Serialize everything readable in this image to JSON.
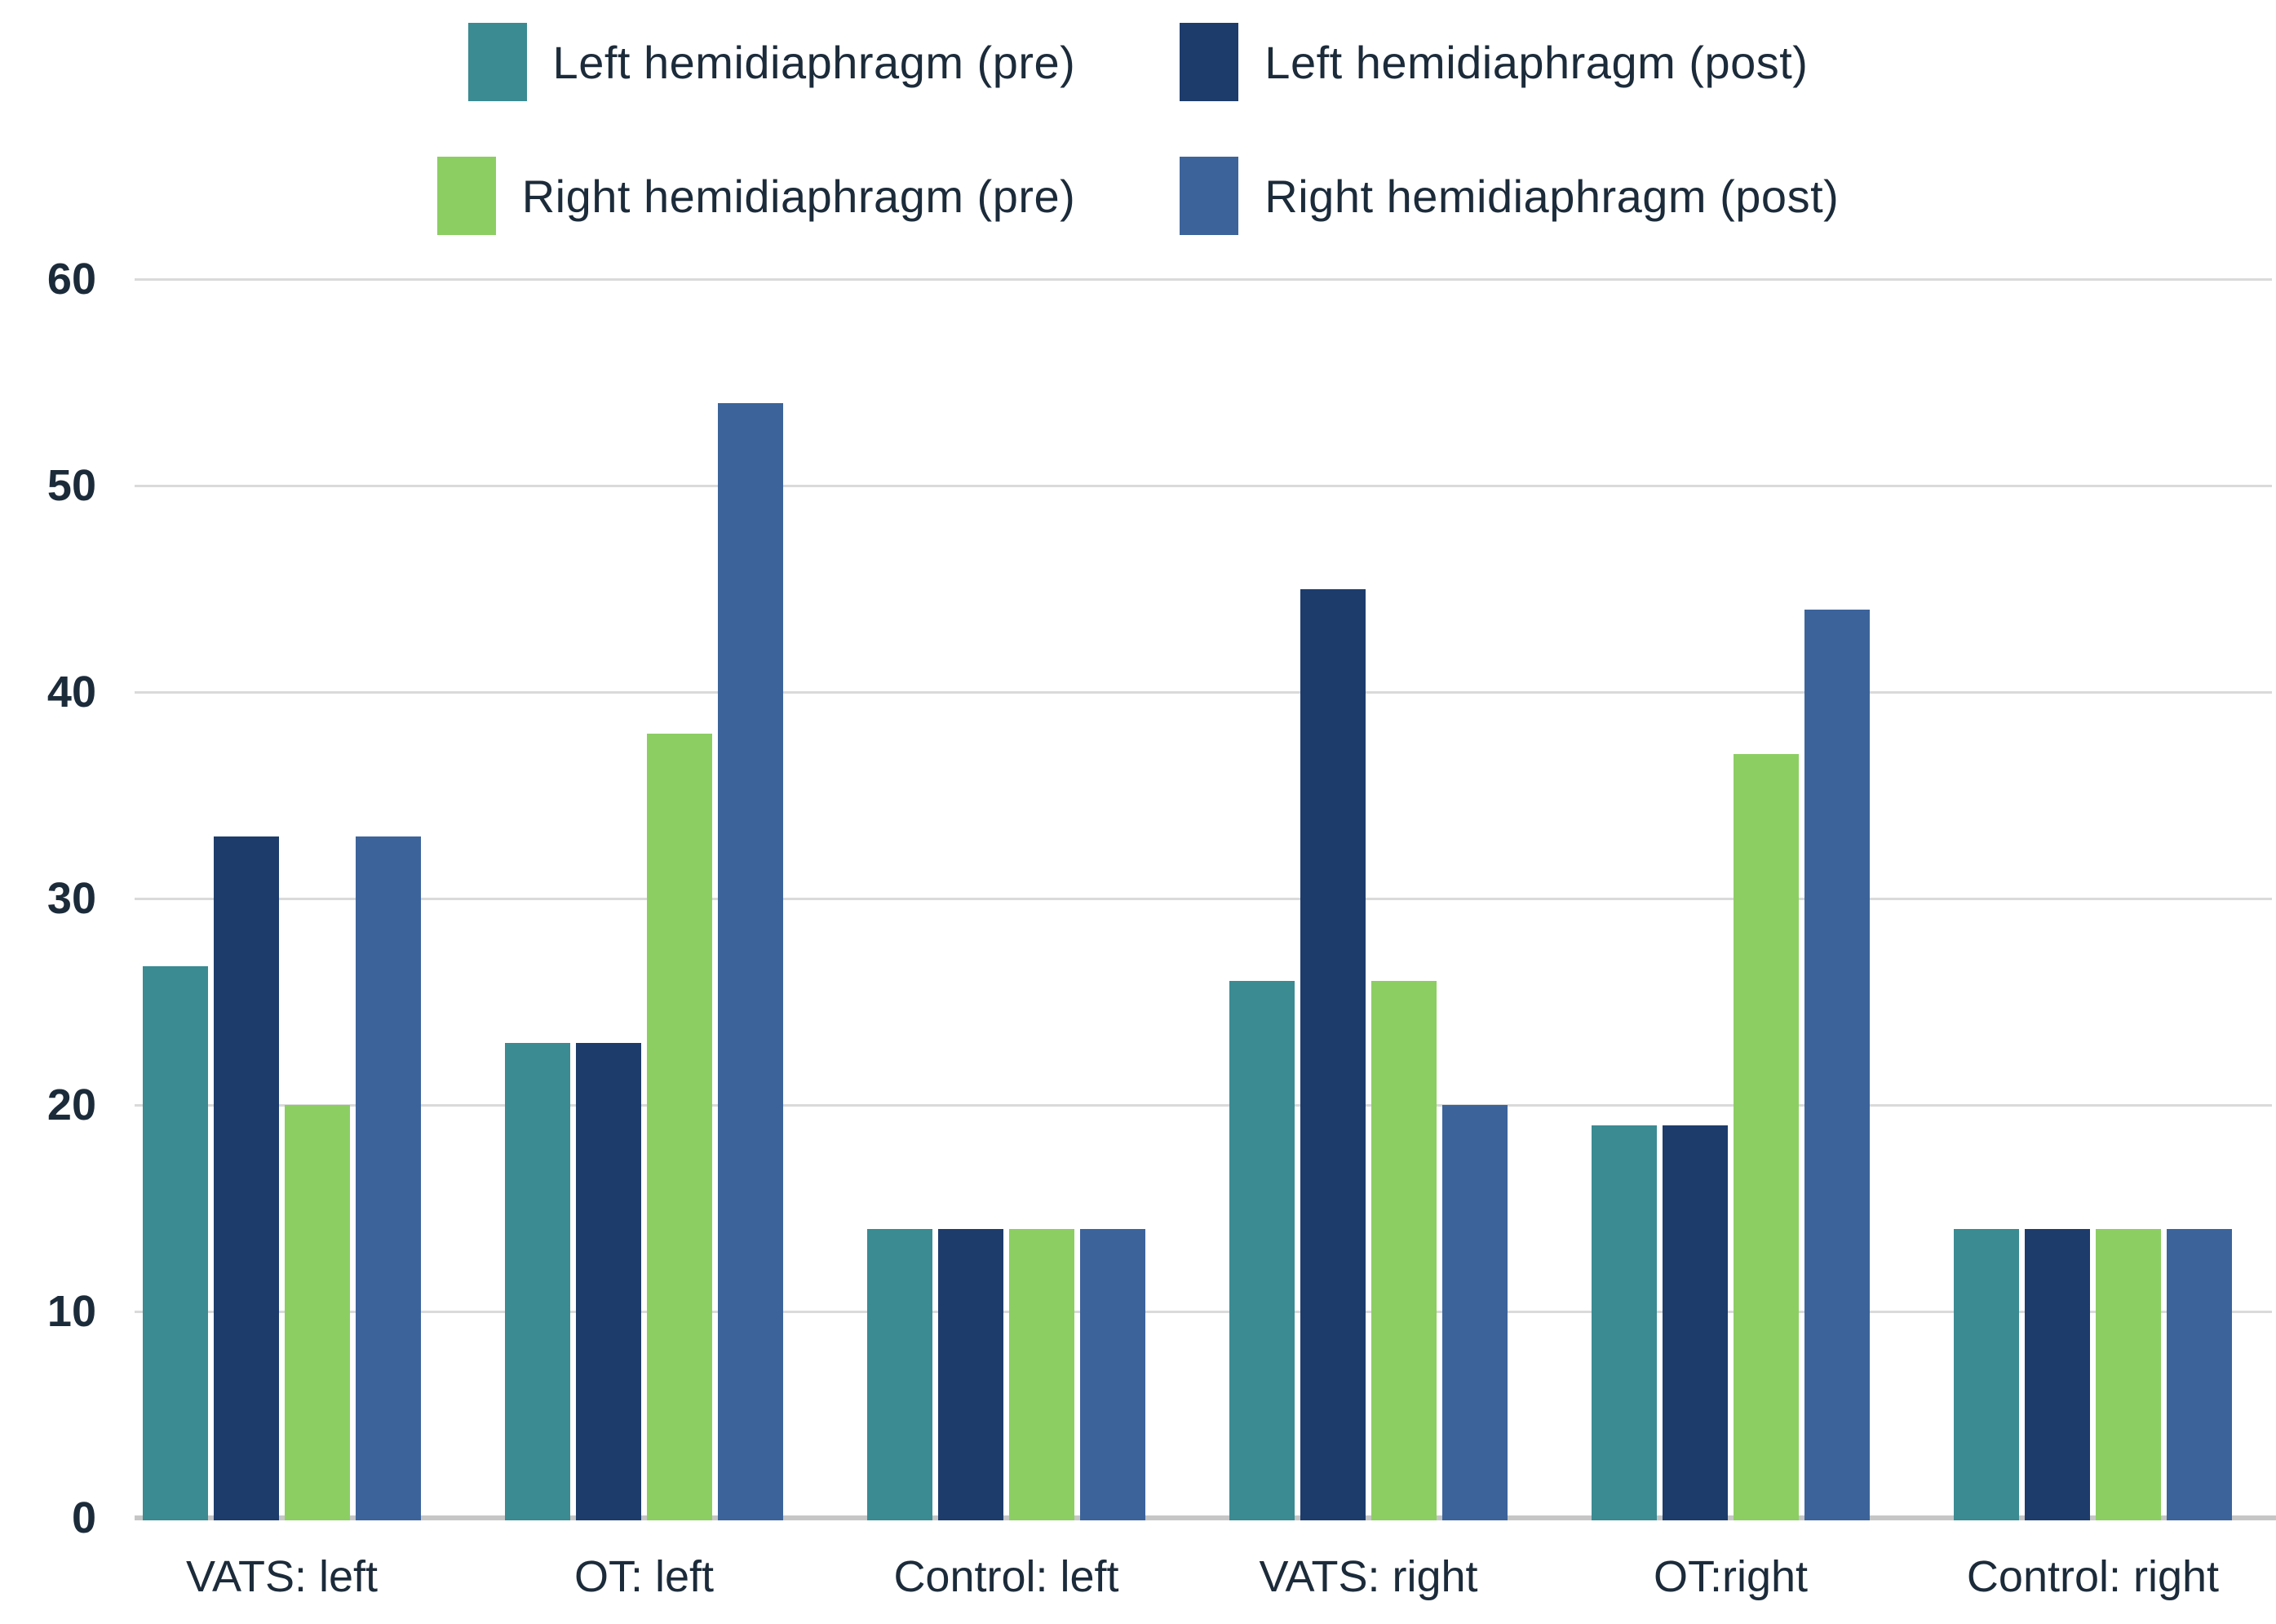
{
  "chart_data": {
    "type": "bar",
    "title": "",
    "categories": [
      "VATS: left",
      "OT: left",
      "Control: left",
      "VATS: right",
      "OT:right",
      "Control: right"
    ],
    "series": [
      {
        "name": "Left hemidiaphragm (pre)",
        "color": "#3A8B92",
        "values": [
          26.7,
          23,
          14,
          26,
          19,
          14
        ]
      },
      {
        "name": "Left hemidiaphragm (post)",
        "color": "#1D3C6C",
        "values": [
          33,
          23,
          14,
          45,
          19,
          14
        ]
      },
      {
        "name": "Right hemidiaphragm (pre)",
        "color": "#8CCE62",
        "values": [
          20,
          38,
          14,
          26,
          37,
          14
        ]
      },
      {
        "name": "Right hemidiaphragm (post)",
        "color": "#3C649B",
        "values": [
          33,
          54,
          14,
          20,
          44,
          14
        ]
      }
    ],
    "y_axis": {
      "min": 0,
      "max": 60,
      "tick_interval": 10,
      "ticks": [
        0,
        10,
        20,
        30,
        40,
        50,
        60
      ]
    },
    "x_label": "",
    "y_label": "",
    "grid": true,
    "legend_position": "top",
    "legend_rows": [
      [
        "Left hemidiaphragm (pre)",
        "Left hemidiaphragm (post)"
      ],
      [
        "Right hemidiaphragm (pre)",
        "Right hemidiaphragm (post)"
      ]
    ],
    "colors": {
      "background": "#FFFFFF",
      "text": "#1C2B3A",
      "gridline": "#DADADA",
      "axis_line": "#C6C6C6"
    }
  }
}
